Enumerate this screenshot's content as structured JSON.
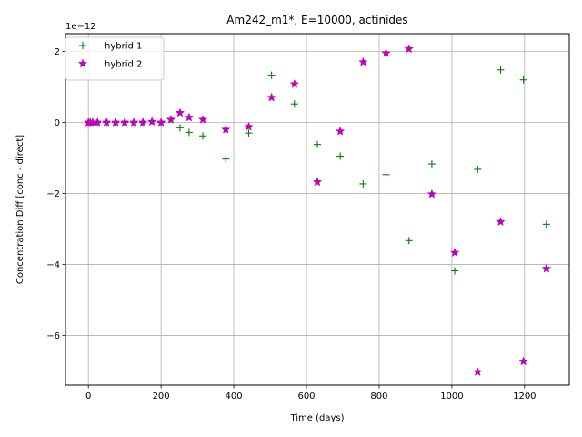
{
  "chart_data": {
    "type": "scatter",
    "title": "Am242_m1*, E=10000, actinides",
    "xlabel": "Time (days)",
    "ylabel": "Concentration Diff [conc - direct]",
    "y_offset_label": "1e−12",
    "xlim": [
      -63,
      1323
    ],
    "ylim": [
      -7.4e-12,
      2.5e-12
    ],
    "xticks": [
      0,
      200,
      400,
      600,
      800,
      1000,
      1200
    ],
    "xtick_labels": [
      "0",
      "200",
      "400",
      "600",
      "800",
      "1000",
      "1200"
    ],
    "yticks": [
      -6e-12,
      -4e-12,
      -2e-12,
      0,
      2e-12
    ],
    "ytick_labels": [
      "−6",
      "−4",
      "−2",
      "0",
      "2"
    ],
    "grid": true,
    "legend_position": "top-left",
    "series": [
      {
        "name": "hybrid 1",
        "marker": "plus",
        "color": "#008000",
        "x": [
          0,
          5,
          12,
          25,
          50,
          75,
          100,
          125,
          150,
          175,
          200,
          227,
          252,
          277,
          315,
          378,
          441,
          504,
          567,
          630,
          693,
          756,
          819,
          882,
          945,
          1008,
          1071,
          1134,
          1197,
          1260
        ],
        "y": [
          0,
          0,
          0,
          0,
          0,
          0,
          0,
          0,
          0,
          5e-14,
          0,
          1e-13,
          -1.5e-13,
          -2.8e-13,
          -3.8e-13,
          -1.03e-12,
          -3e-13,
          1.33e-12,
          5.2e-13,
          -6.2e-13,
          -9.5e-13,
          -1.73e-12,
          -1.47e-12,
          -3.33e-12,
          -1.17e-12,
          -4.18e-12,
          -1.32e-12,
          1.48e-12,
          1.2e-12,
          -2.87e-12
        ]
      },
      {
        "name": "hybrid 2",
        "marker": "star",
        "color": "#bf00bf",
        "x": [
          0,
          5,
          12,
          25,
          50,
          75,
          100,
          125,
          150,
          175,
          200,
          227,
          252,
          277,
          315,
          378,
          441,
          504,
          567,
          630,
          693,
          756,
          819,
          882,
          945,
          1008,
          1071,
          1134,
          1197,
          1260
        ],
        "y": [
          0,
          0,
          0,
          0,
          0,
          0,
          0,
          0,
          0,
          2e-14,
          0,
          8e-14,
          2.7e-13,
          1.4e-13,
          8e-14,
          -2e-13,
          -1.2e-13,
          7e-13,
          1.08e-12,
          -1.68e-12,
          -2.5e-13,
          1.7e-12,
          1.95e-12,
          2.07e-12,
          -2.02e-12,
          -3.67e-12,
          -7.03e-12,
          -2.8e-12,
          -6.73e-12,
          -4.12e-12
        ]
      }
    ]
  }
}
